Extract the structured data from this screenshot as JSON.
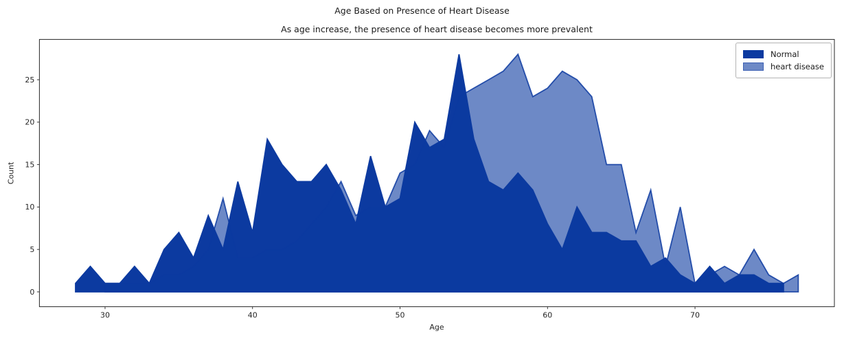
{
  "chart_data": {
    "type": "area",
    "title": "Age Based on Presence of Heart Disease",
    "subtitle": "As age increase, the presence of heart disease becomes more prevalent",
    "xlabel": "Age",
    "ylabel": "Count",
    "xticks": [
      30,
      40,
      50,
      60,
      70
    ],
    "yticks": [
      0,
      5,
      10,
      15,
      20,
      25
    ],
    "xlim": [
      25.55,
      79.45
    ],
    "ylim": [
      -1.75,
      29.75
    ],
    "grid": false,
    "legend_position": "upper right",
    "series": [
      {
        "name": "Normal",
        "color": "#0c3aa0",
        "fill_opacity": 1,
        "edge_opacity": 1,
        "legend_swatch_bg": "#0c3aa0",
        "legend_swatch_border": "#0c3aa0",
        "x": [
          28,
          29,
          30,
          31,
          32,
          33,
          34,
          35,
          36,
          37,
          38,
          39,
          40,
          41,
          42,
          43,
          44,
          45,
          46,
          47,
          48,
          49,
          50,
          51,
          52,
          53,
          54,
          55,
          56,
          57,
          58,
          59,
          60,
          61,
          62,
          63,
          64,
          65,
          66,
          67,
          68,
          69,
          70,
          71,
          72,
          73,
          74,
          75,
          76
        ],
        "values": [
          1,
          3,
          1,
          1,
          3,
          1,
          5,
          7,
          4,
          9,
          5,
          13,
          7,
          18,
          15,
          13,
          13,
          15,
          12,
          8,
          16,
          10,
          11,
          20,
          17,
          18,
          28,
          18,
          13,
          12,
          14,
          12,
          8,
          5,
          10,
          7,
          7,
          6,
          6,
          3,
          4,
          2,
          1,
          3,
          1,
          2,
          2,
          1,
          1
        ]
      },
      {
        "name": "heart disease",
        "color": "#0c3aa0",
        "fill_opacity": 0.6,
        "edge_opacity": 0.85,
        "legend_swatch_bg": "#6d89c6",
        "legend_swatch_border": "#3c60b4",
        "x": [
          30,
          31,
          32,
          33,
          34,
          35,
          36,
          37,
          38,
          39,
          40,
          41,
          42,
          43,
          44,
          45,
          46,
          47,
          48,
          49,
          50,
          51,
          52,
          53,
          54,
          55,
          56,
          57,
          58,
          59,
          60,
          61,
          62,
          63,
          64,
          65,
          66,
          67,
          68,
          69,
          70,
          71,
          72,
          73,
          74,
          75,
          76,
          77
        ],
        "values": [
          1,
          1,
          1,
          1,
          2,
          2,
          3,
          5,
          11,
          4,
          4,
          5,
          5,
          6,
          8,
          10,
          13,
          9,
          10,
          10,
          14,
          15,
          19,
          17,
          23,
          24,
          25,
          26,
          28,
          23,
          24,
          26,
          25,
          23,
          15,
          15,
          7,
          12,
          3,
          10,
          1,
          2,
          3,
          2,
          5,
          2,
          1,
          2
        ]
      }
    ]
  }
}
